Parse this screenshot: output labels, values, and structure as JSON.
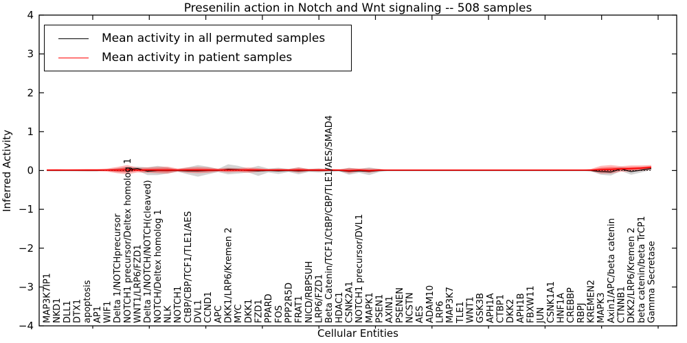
{
  "chart_data": {
    "type": "line",
    "title": "Presenilin action in Notch and Wnt signaling -- 508 samples",
    "xlabel": "Cellular Entities",
    "ylabel": "Inferred Activity",
    "sample_count": 508,
    "ylim": [
      -4,
      4
    ],
    "yticks": [
      4,
      3,
      2,
      1,
      0,
      -1,
      -2,
      -3,
      -4
    ],
    "ytick_labels": [
      "4",
      "3",
      "2",
      "1",
      "0",
      "−1",
      "−2",
      "−3",
      "−4"
    ],
    "grid": false,
    "legend_position": "upper left",
    "zero_baseline": {
      "value": 0,
      "style": "dotted",
      "color": "#000000"
    },
    "categories": [
      "MAP3K7IP1",
      "NKD1",
      "DLL1",
      "DTX1",
      "apoptosis",
      "AP1",
      "WIF1",
      "Delta 1/NOTCHprecursor",
      "NOTCH1 precursor/Deltex homolog 1",
      "WNT1/LRP6/FZD1",
      "Delta 1/NOTCH/NOTCH(cleaved)",
      "NOTCH/Deltex homolog 1",
      "NLK",
      "NOTCH1",
      "CtBP/CBP/TCF1/TLE1/AES",
      "DVL1",
      "CCND1",
      "APC",
      "DKK1/LRP6/Kremen 2",
      "MYC",
      "DKK1",
      "FZD1",
      "PPARD",
      "FOS",
      "PPP2R5D",
      "FRAT1",
      "NICD/RBPSUH",
      "LRP6/FZD1",
      "Beta Catenin/TCF1/CtBP/CBP/TLE1/AES/SMAD4",
      "HDAC1",
      "CSNK2A1",
      "NOTCH1 precursor/DVL1",
      "MAPK1",
      "PSEN1",
      "AXIN1",
      "PSENEN",
      "NCSTN",
      "AES",
      "ADAM10",
      "LRP6",
      "MAP3K7",
      "TLE1",
      "WNT1",
      "GSK3B",
      "APH1A",
      "CTBP1",
      "DKK2",
      "APH1B",
      "FBXW11",
      "JUN",
      "CSNK1A1",
      "HNF1A",
      "CREBBP",
      "RBPJ",
      "KREMEN2",
      "MAPK3",
      "Axin1/APC/beta catenin",
      "CTNNB1",
      "DKK2/LRP6/Kremen 2",
      "beta catenin/beta TrCP1",
      "Gamma Secretase"
    ],
    "series": [
      {
        "name": "Mean activity in all permuted samples",
        "color": "#000000",
        "style": "solid",
        "width": 1.2,
        "values": [
          0,
          0,
          0,
          0,
          0,
          0,
          0.01,
          0.01,
          0.02,
          0.05,
          -0.02,
          0,
          0,
          0,
          -0.01,
          -0.01,
          0,
          0,
          0.03,
          0.02,
          0,
          -0.01,
          0,
          -0.01,
          0,
          -0.01,
          0,
          0,
          0,
          0,
          -0.02,
          -0.01,
          -0.02,
          0,
          0,
          0,
          0,
          0,
          0,
          0,
          0,
          0,
          0,
          0,
          0,
          0,
          0,
          0,
          0,
          0,
          0,
          0,
          0,
          0,
          0,
          -0.03,
          -0.04,
          0.04,
          -0.03,
          0.01,
          0.05
        ]
      },
      {
        "name": "Mean activity in patient samples",
        "color": "#ff0000",
        "style": "solid",
        "width": 1.6,
        "values": [
          0.01,
          0.01,
          0.01,
          0.01,
          0.01,
          0.01,
          0.01,
          0.01,
          0.02,
          0.01,
          0.01,
          0.01,
          0.01,
          0.01,
          0.01,
          0.01,
          0.01,
          0.01,
          0.01,
          0.01,
          0.01,
          0.01,
          0.01,
          0.01,
          0.01,
          0.01,
          0.01,
          0.01,
          0.01,
          0.01,
          -0.005,
          0.01,
          -0.005,
          0.01,
          0.01,
          0.01,
          0.01,
          0.01,
          0.01,
          0.01,
          0.01,
          0.01,
          0.01,
          0.01,
          0.01,
          0.01,
          0.01,
          0.01,
          0.01,
          0.01,
          0.01,
          0.01,
          0.01,
          0.01,
          0.01,
          0.02,
          0.03,
          0.04,
          0.05,
          0.06,
          0.08
        ]
      }
    ],
    "bands": [
      {
        "name": "permuted-spread-band",
        "color": "#808080",
        "center_series": 0,
        "layers": [
          {
            "scale": 1.0,
            "alpha": 0.35
          }
        ],
        "halfwidths": [
          0.005,
          0.005,
          0.01,
          0.01,
          0.015,
          0.015,
          0.02,
          0.05,
          0.07,
          0.05,
          0.1,
          0.12,
          0.08,
          0.03,
          0.09,
          0.15,
          0.1,
          0.04,
          0.13,
          0.1,
          0.05,
          0.13,
          0.05,
          0.08,
          0.04,
          0.09,
          0.04,
          0.05,
          0.03,
          0.02,
          0.09,
          0.05,
          0.1,
          0.04,
          0,
          0,
          0,
          0,
          0,
          0,
          0,
          0,
          0,
          0,
          0,
          0,
          0,
          0,
          0,
          0,
          0,
          0,
          0,
          0,
          0.02,
          0.08,
          0.09,
          0.05,
          0.08,
          0.06,
          0.04
        ]
      },
      {
        "name": "patient-spread-band",
        "color": "#ff0000",
        "center_series": 1,
        "layers": [
          {
            "scale": 1.0,
            "alpha": 0.28
          },
          {
            "scale": 0.5,
            "alpha": 0.38
          }
        ],
        "halfwidths": [
          0.02,
          0.025,
          0.02,
          0.025,
          0.03,
          0.03,
          0.04,
          0.08,
          0.12,
          0.06,
          0.07,
          0.08,
          0.09,
          0.04,
          0.07,
          0.08,
          0.07,
          0.04,
          0.06,
          0.05,
          0.07,
          0.05,
          0.03,
          0.04,
          0.03,
          0.07,
          0.03,
          0.04,
          0.03,
          0.02,
          0.07,
          0.04,
          0.06,
          0.03,
          0,
          0,
          0,
          0,
          0,
          0,
          0,
          0,
          0,
          0,
          0,
          0,
          0,
          0,
          0,
          0,
          0,
          0,
          0,
          0,
          0.03,
          0.1,
          0.11,
          0.07,
          0.08,
          0.07,
          0.06
        ]
      }
    ]
  }
}
